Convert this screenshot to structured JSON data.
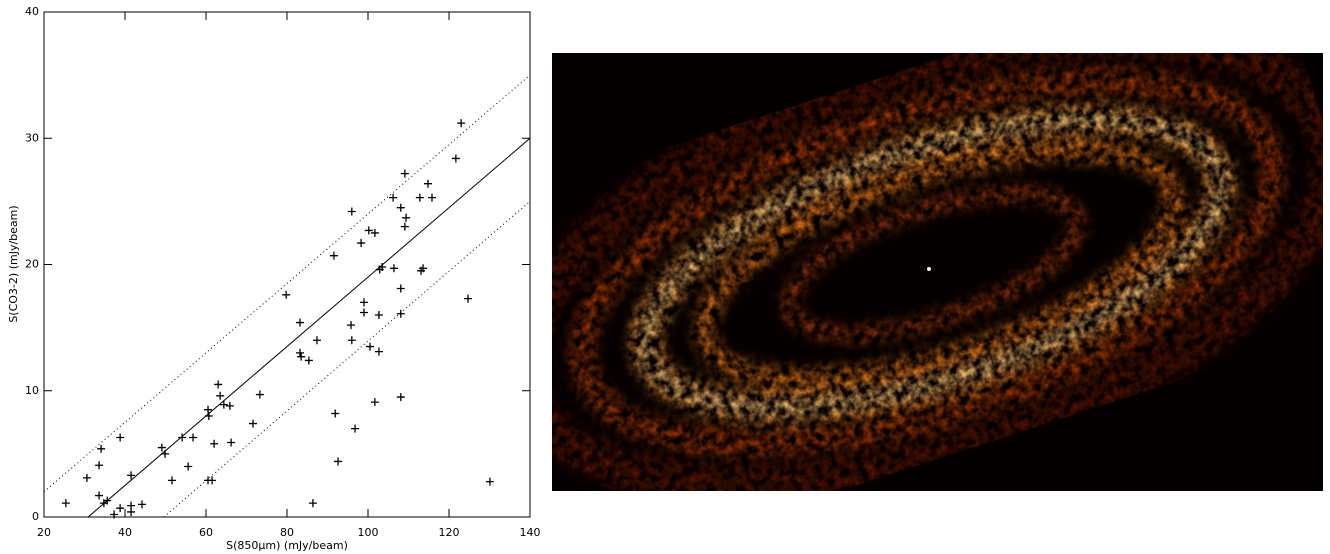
{
  "chart_data": {
    "type": "scatter",
    "x_label": "S(850μm) (mJy/beam)",
    "y_label": "S(CO3-2) (mJy/beam)",
    "xlim": [
      20,
      140
    ],
    "xticks": [
      20,
      40,
      60,
      80,
      100,
      120,
      140
    ],
    "ylim": [
      0,
      40
    ],
    "yticks": [
      0,
      10,
      20,
      30,
      40
    ],
    "color": "#000000",
    "marker": "+",
    "x": [
      25.4,
      30.6,
      33.6,
      34.1,
      33.6,
      34.8,
      35.6,
      37.3,
      38.8,
      38.8,
      41.5,
      41.5,
      41.5,
      44.2,
      49.1,
      49.9,
      51.6,
      54.1,
      55.6,
      56.8,
      60.5,
      60.7,
      60.5,
      61.5,
      62.0,
      63.0,
      63.5,
      64.4,
      65.9,
      66.2,
      71.6,
      73.3,
      79.8,
      83.2,
      83.2,
      83.5,
      85.4,
      86.4,
      87.4,
      91.6,
      91.9,
      92.6,
      96.0,
      95.8,
      96.0,
      96.8,
      98.3,
      99.0,
      99.0,
      100.2,
      100.5,
      101.7,
      101.7,
      102.7,
      102.7,
      102.9,
      103.5,
      106.2,
      106.4,
      108.1,
      108.1,
      108.1,
      108.1,
      109.1,
      109.4,
      109.1,
      112.8,
      113.1,
      113.6,
      114.8,
      115.8,
      121.7,
      123.0,
      124.7,
      130.1
    ],
    "values": [
      1.1,
      3.1,
      4.1,
      5.4,
      1.7,
      1.1,
      1.3,
      0.2,
      0.7,
      6.3,
      3.3,
      0.9,
      0.4,
      1.0,
      5.5,
      5.0,
      2.9,
      6.3,
      4.0,
      6.3,
      8.5,
      8.0,
      2.9,
      2.9,
      5.8,
      10.5,
      9.6,
      8.9,
      8.8,
      5.9,
      7.4,
      9.7,
      17.6,
      15.4,
      13.0,
      12.7,
      12.4,
      1.1,
      14.0,
      20.7,
      8.2,
      4.4,
      24.2,
      15.2,
      14.0,
      7.0,
      21.7,
      17.0,
      16.2,
      22.7,
      13.5,
      22.5,
      9.1,
      16.0,
      13.1,
      19.6,
      19.8,
      25.3,
      19.7,
      24.5,
      18.1,
      16.1,
      9.5,
      27.2,
      23.7,
      23.0,
      25.3,
      19.5,
      19.7,
      26.4,
      25.3,
      28.4,
      31.2,
      17.3,
      2.8
    ],
    "lines": [
      {
        "style": "solid",
        "x": [
          30.9,
          140
        ],
        "values": [
          0,
          30
        ]
      },
      {
        "style": "dotted",
        "x": [
          20,
          140
        ],
        "values": [
          2,
          35
        ]
      },
      {
        "style": "dotted",
        "x": [
          49.6,
          140
        ],
        "values": [
          0,
          25
        ]
      }
    ]
  }
}
